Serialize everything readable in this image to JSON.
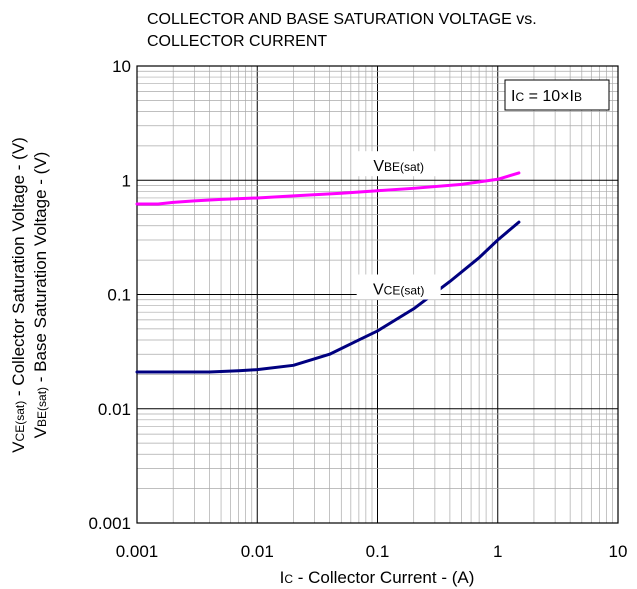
{
  "chart_data": {
    "type": "line",
    "title": [
      "COLLECTOR AND BASE SATURATION VOLTAGE vs.",
      "COLLECTOR CURRENT"
    ],
    "xlabel": {
      "main": "I",
      "sub": "C",
      "rest": " - Collector Current - (A)"
    },
    "ylabel_lines": [
      {
        "main": "V",
        "sub": "CE(sat)",
        "rest": " - Collector Saturation Voltage - (V)"
      },
      {
        "main": "V",
        "sub": "BE(sat)",
        "rest": " - Base Saturation Voltage - (V)"
      }
    ],
    "x_scale": "log",
    "y_scale": "log",
    "xlim": [
      0.001,
      10
    ],
    "ylim": [
      0.001,
      10
    ],
    "x_ticks": [
      {
        "value": 0.001,
        "label": "0.001"
      },
      {
        "value": 0.01,
        "label": "0.01"
      },
      {
        "value": 0.1,
        "label": "0.1"
      },
      {
        "value": 1,
        "label": "1"
      },
      {
        "value": 10,
        "label": "10"
      }
    ],
    "y_ticks": [
      {
        "value": 0.001,
        "label": "0.001"
      },
      {
        "value": 0.01,
        "label": "0.01"
      },
      {
        "value": 0.1,
        "label": "0.1"
      },
      {
        "value": 1,
        "label": "1"
      },
      {
        "value": 10,
        "label": "10"
      }
    ],
    "grid": true,
    "annotation": {
      "main": "I",
      "sub": "C",
      "rest": " = 10×I",
      "sub2": "B",
      "position": "top-right"
    },
    "series": [
      {
        "label_main": "V",
        "label_sub": "BE(sat)",
        "color": "#ff00ff",
        "label_at": {
          "x": 0.15,
          "y": 1.2
        },
        "x": [
          0.001,
          0.0015,
          0.002,
          0.003,
          0.005,
          0.01,
          0.02,
          0.05,
          0.1,
          0.2,
          0.5,
          1,
          1.5
        ],
        "y": [
          0.62,
          0.62,
          0.64,
          0.66,
          0.68,
          0.7,
          0.73,
          0.77,
          0.81,
          0.85,
          0.92,
          1.02,
          1.16
        ]
      },
      {
        "label_main": "V",
        "label_sub": "CE(sat)",
        "color": "#000080",
        "label_at": {
          "x": 0.15,
          "y": 0.1
        },
        "x": [
          0.001,
          0.002,
          0.004,
          0.007,
          0.01,
          0.02,
          0.04,
          0.07,
          0.1,
          0.2,
          0.4,
          0.7,
          1,
          1.5
        ],
        "y": [
          0.021,
          0.021,
          0.021,
          0.0215,
          0.022,
          0.024,
          0.03,
          0.04,
          0.048,
          0.075,
          0.13,
          0.21,
          0.3,
          0.43
        ]
      }
    ]
  }
}
